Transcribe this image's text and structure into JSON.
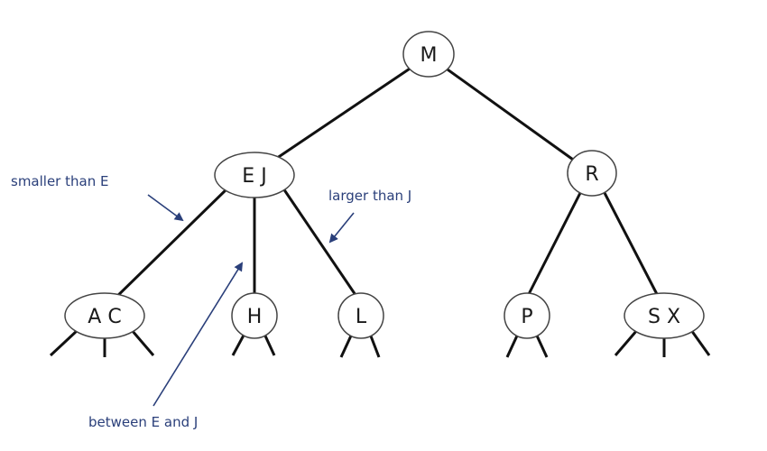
{
  "diagram": {
    "nodes": [
      {
        "id": "m",
        "label": "M"
      },
      {
        "id": "ej",
        "label": "E J"
      },
      {
        "id": "r",
        "label": "R"
      },
      {
        "id": "ac",
        "label": "A C"
      },
      {
        "id": "h",
        "label": "H"
      },
      {
        "id": "l",
        "label": "L"
      },
      {
        "id": "p",
        "label": "P"
      },
      {
        "id": "sx",
        "label": "S X"
      }
    ],
    "edges": [
      {
        "from": "m",
        "to": "ej"
      },
      {
        "from": "m",
        "to": "r"
      },
      {
        "from": "ej",
        "to": "ac"
      },
      {
        "from": "ej",
        "to": "h"
      },
      {
        "from": "ej",
        "to": "l"
      },
      {
        "from": "r",
        "to": "p"
      },
      {
        "from": "r",
        "to": "sx"
      }
    ],
    "annotations": {
      "smaller": "smaller than E",
      "larger": "larger than J",
      "between": "between E and J"
    },
    "colors": {
      "line": "#111111",
      "node_fill": "#ffffff",
      "node_stroke": "#444444",
      "annotation": "#2a3f7a"
    }
  }
}
